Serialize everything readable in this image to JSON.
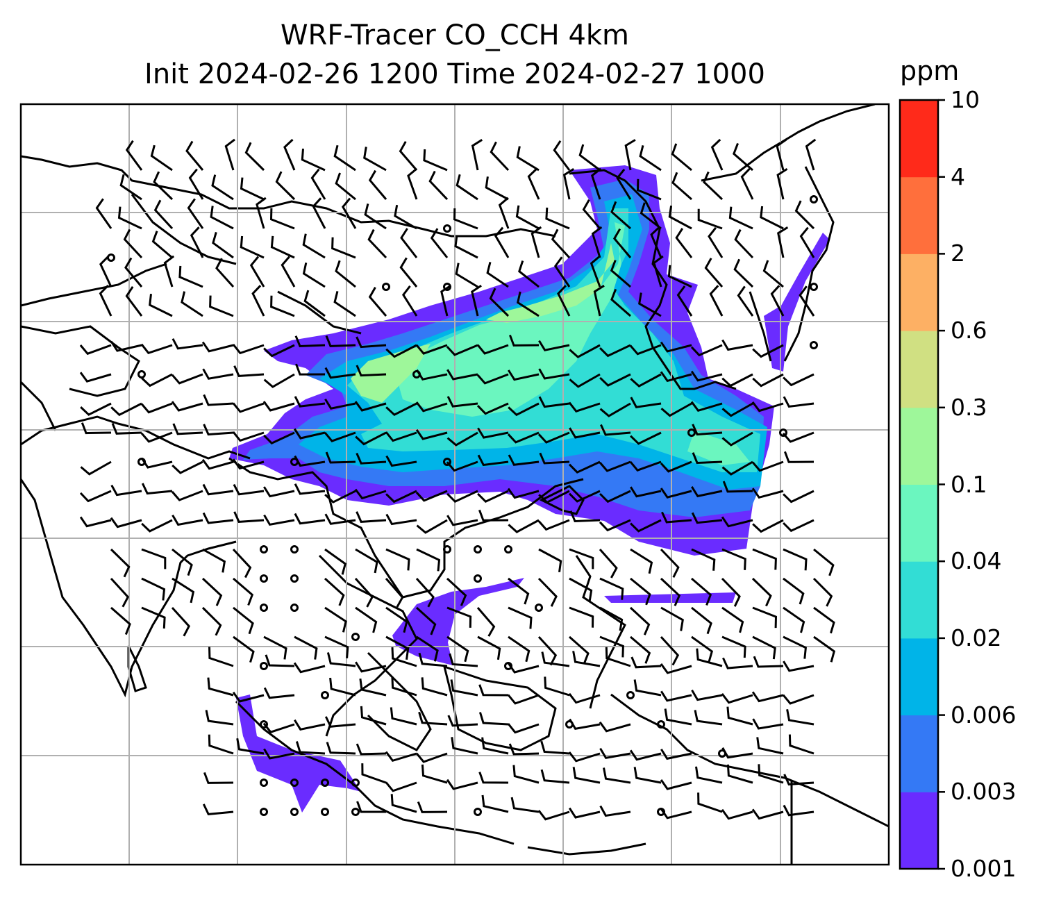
{
  "title": {
    "line1": "WRF-Tracer CO_CCH 4km",
    "line2": "Init 2024-02-26 1200 Time 2024-02-27 1000"
  },
  "colorbar": {
    "unit": "ppm",
    "ticks": [
      "10",
      "4",
      "2",
      "0.6",
      "0.3",
      "0.1",
      "0.04",
      "0.02",
      "0.006",
      "0.003",
      "0.001"
    ],
    "levels_bottom_to_top": [
      {
        "range": "0.001-0.003",
        "color": "#6a2cff"
      },
      {
        "range": "0.003-0.006",
        "color": "#3479f5"
      },
      {
        "range": "0.006-0.02",
        "color": "#00b4e8"
      },
      {
        "range": "0.02-0.04",
        "color": "#32ddd5"
      },
      {
        "range": "0.04-0.1",
        "color": "#6bf6bf"
      },
      {
        "range": "0.1-0.3",
        "color": "#9ef79a"
      },
      {
        "range": "0.3-0.6",
        "color": "#d0e082"
      },
      {
        "range": "0.6-2",
        "color": "#fdb064"
      },
      {
        "range": "2-4",
        "color": "#ff6f3c"
      },
      {
        "range": "4-10",
        "color": "#ff2a1a"
      }
    ]
  },
  "map": {
    "region": "East and Southeast Asia",
    "gridlines": true,
    "coastlines": true,
    "wind_barbs": true
  }
}
